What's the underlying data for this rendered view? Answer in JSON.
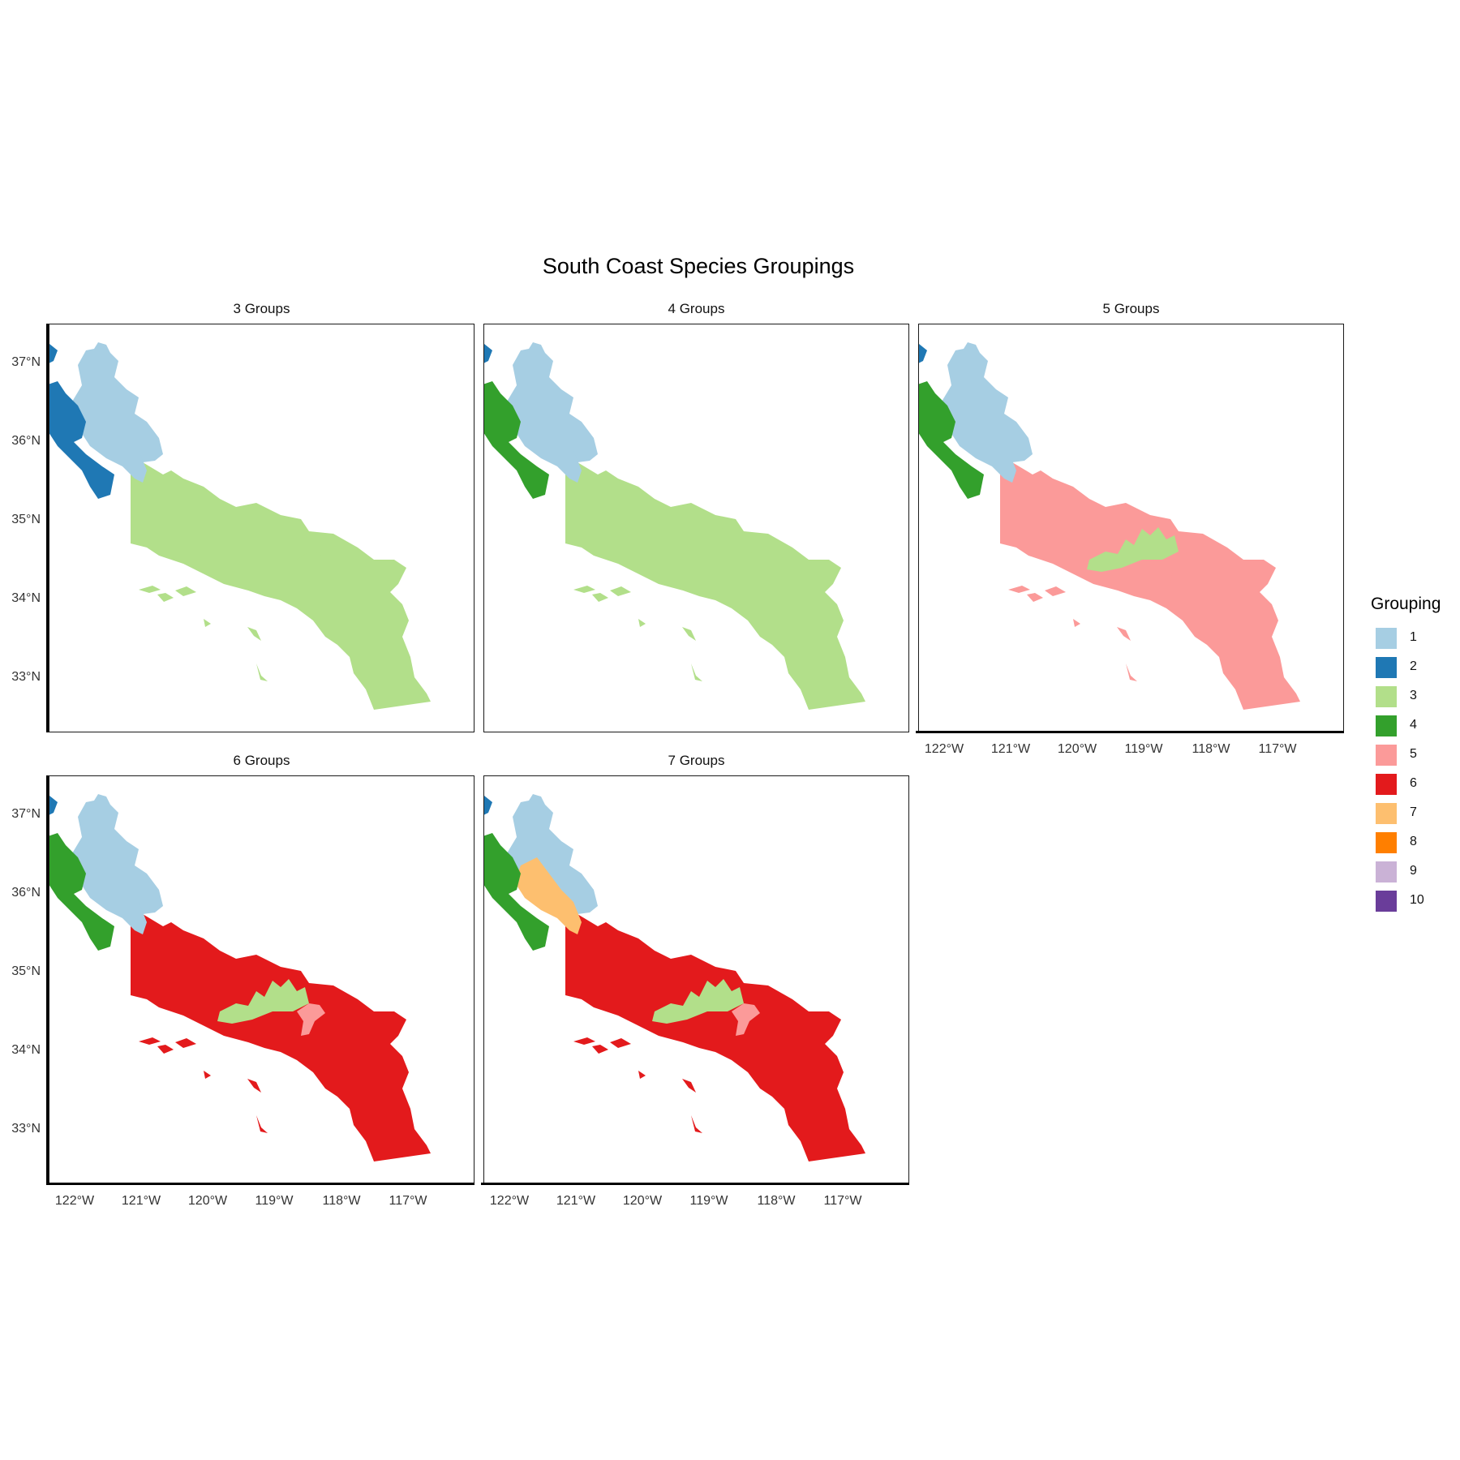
{
  "title": "South Coast Species Groupings",
  "legend": {
    "title": "Grouping",
    "items": [
      {
        "label": "1",
        "color": "#a6cee3"
      },
      {
        "label": "2",
        "color": "#1f78b4"
      },
      {
        "label": "3",
        "color": "#b2df8a"
      },
      {
        "label": "4",
        "color": "#33a02c"
      },
      {
        "label": "5",
        "color": "#fb9a99"
      },
      {
        "label": "6",
        "color": "#e31a1c"
      },
      {
        "label": "7",
        "color": "#fdbf6f"
      },
      {
        "label": "8",
        "color": "#ff7f00"
      },
      {
        "label": "9",
        "color": "#cab2d6"
      },
      {
        "label": "10",
        "color": "#6a3d9a"
      }
    ]
  },
  "axes": {
    "y_ticks": [
      "37°N",
      "36°N",
      "35°N",
      "34°N",
      "33°N"
    ],
    "x_ticks": [
      "122°W",
      "121°W",
      "120°W",
      "119°W",
      "118°W",
      "117°W"
    ]
  },
  "panels": [
    {
      "title": "3 Groups",
      "regions": {
        "coast_north": "2",
        "coast_mid": "2",
        "inland_north": "1",
        "salinas": "1",
        "south": "3",
        "sgm": "3",
        "la_basin": "3",
        "islands": "3"
      }
    },
    {
      "title": "4 Groups",
      "regions": {
        "coast_north": "2",
        "coast_mid": "4",
        "inland_north": "1",
        "salinas": "1",
        "south": "3",
        "sgm": "3",
        "la_basin": "3",
        "islands": "3"
      }
    },
    {
      "title": "5 Groups",
      "regions": {
        "coast_north": "2",
        "coast_mid": "4",
        "inland_north": "1",
        "salinas": "1",
        "south": "5",
        "sgm": "3",
        "la_basin": "5",
        "islands": "5"
      }
    },
    {
      "title": "6 Groups",
      "regions": {
        "coast_north": "2",
        "coast_mid": "4",
        "inland_north": "1",
        "salinas": "1",
        "south": "6",
        "sgm": "3",
        "la_basin": "5",
        "islands": "6"
      }
    },
    {
      "title": "7 Groups",
      "regions": {
        "coast_north": "2",
        "coast_mid": "4",
        "inland_north": "1",
        "salinas": "7",
        "south": "6",
        "sgm": "3",
        "la_basin": "5",
        "islands": "6"
      }
    }
  ]
}
